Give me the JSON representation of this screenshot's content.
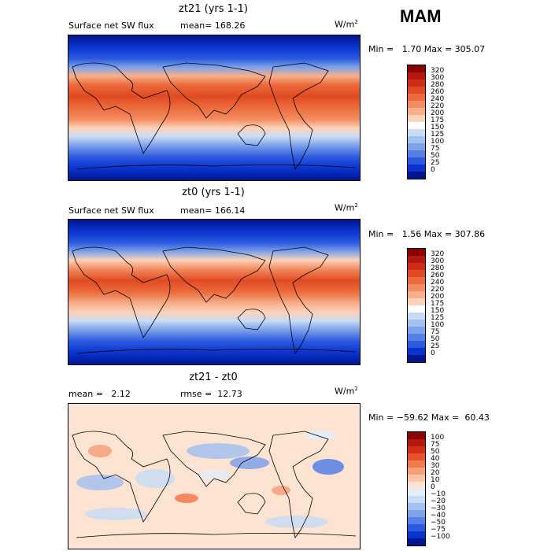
{
  "season": "MAM",
  "panels": [
    {
      "title": "zt21 (yrs 1-1)",
      "left_text": "Surface net SW flux",
      "mean_text": "mean= 168.26",
      "units_base": "W/m",
      "units_exp": "2",
      "stats": "Min =   1.70 Max = 305.07",
      "colorbar": {
        "labels": [
          "320",
          "300",
          "280",
          "260",
          "240",
          "220",
          "200",
          "175",
          "150",
          "125",
          "100",
          "75",
          "50",
          "25",
          "0"
        ],
        "colors": [
          "#8b0000",
          "#b2180e",
          "#cf2d16",
          "#e04a22",
          "#ec6b3c",
          "#f38d61",
          "#f8b08c",
          "#fcd3b9",
          "#ffffff",
          "#c8dcf5",
          "#a4c2ef",
          "#7ea2ea",
          "#5580e6",
          "#2b5ae0",
          "#0a32cf",
          "#00168f"
        ]
      }
    },
    {
      "title": "zt0 (yrs 1-1)",
      "left_text": "Surface net SW flux",
      "mean_text": "mean= 166.14",
      "units_base": "W/m",
      "units_exp": "2",
      "stats": "Min =   1.56 Max = 307.86",
      "colorbar": {
        "labels": [
          "320",
          "300",
          "280",
          "260",
          "240",
          "220",
          "200",
          "175",
          "150",
          "125",
          "100",
          "75",
          "50",
          "25",
          "0"
        ],
        "colors": [
          "#8b0000",
          "#b2180e",
          "#cf2d16",
          "#e04a22",
          "#ec6b3c",
          "#f38d61",
          "#f8b08c",
          "#fcd3b9",
          "#ffffff",
          "#c8dcf5",
          "#a4c2ef",
          "#7ea2ea",
          "#5580e6",
          "#2b5ae0",
          "#0a32cf",
          "#00168f"
        ]
      }
    },
    {
      "title": "zt21 - zt0",
      "left_text": "mean =   2.12",
      "mean_text": "rmse =  12.73",
      "units_base": "W/m",
      "units_exp": "2",
      "stats": "Min = −59.62 Max =  60.43",
      "colorbar": {
        "labels": [
          "100",
          "75",
          "50",
          "40",
          "30",
          "20",
          "10",
          "0",
          "−10",
          "−20",
          "−30",
          "−40",
          "−50",
          "−75",
          "−100"
        ],
        "colors": [
          "#8b0000",
          "#b2180e",
          "#d42f16",
          "#e8542a",
          "#f27a4c",
          "#f8a07a",
          "#fbc4a6",
          "#fde3d2",
          "#e4eefb",
          "#c8dcf5",
          "#a4c2ef",
          "#7ea2ea",
          "#5580e6",
          "#2b5ae0",
          "#0a32cf",
          "#00168f"
        ]
      }
    }
  ]
}
